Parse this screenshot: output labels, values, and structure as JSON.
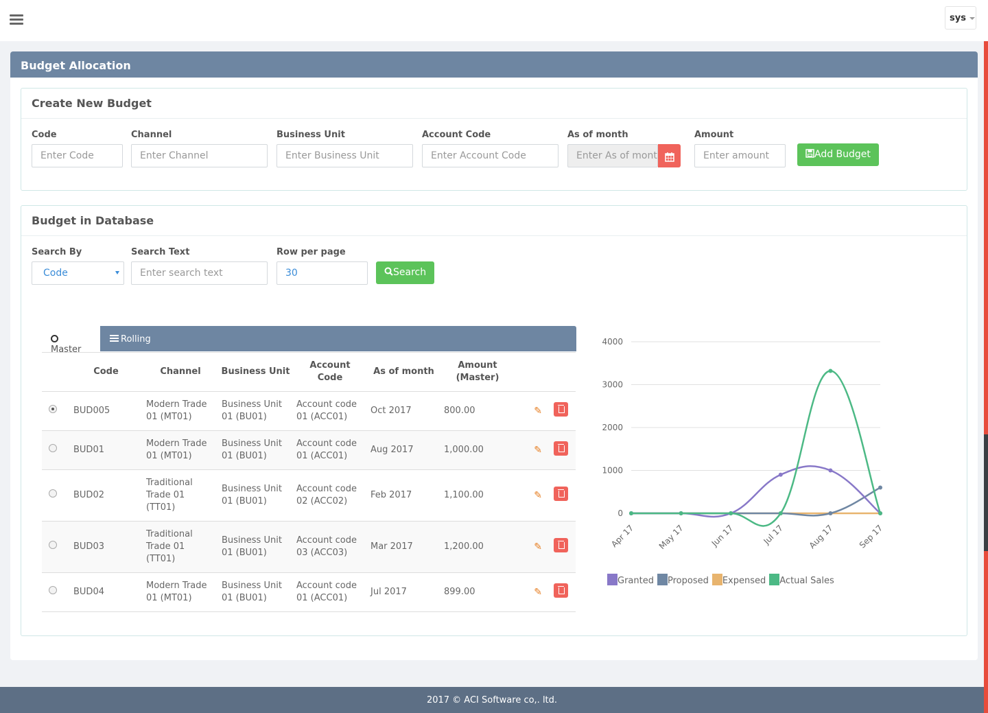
{
  "user": {
    "name": "sys"
  },
  "panel": {
    "title": "Budget Allocation"
  },
  "create": {
    "title": "Create New Budget",
    "fields": [
      {
        "label": "Code",
        "placeholder": "Enter Code"
      },
      {
        "label": "Channel",
        "placeholder": "Enter Channel"
      },
      {
        "label": "Business Unit",
        "placeholder": "Enter Business Unit"
      },
      {
        "label": "Account Code",
        "placeholder": "Enter Account Code"
      },
      {
        "label": "As of month",
        "placeholder": "Enter As of mont"
      },
      {
        "label": "Amount",
        "placeholder": "Enter amount"
      }
    ],
    "add_label": "Add Budget"
  },
  "database": {
    "title": "Budget in Database",
    "search_by_label": "Search By",
    "search_by_value": "Code",
    "search_text_label": "Search Text",
    "search_text_placeholder": "Enter search text",
    "rows_label": "Row per page",
    "rows_value": "30",
    "search_label": "Search"
  },
  "tabs": {
    "master": "Master",
    "rolling": "Rolling"
  },
  "table": {
    "headers": [
      "Code",
      "Channel",
      "Business Unit",
      "Account Code",
      "As of month",
      "Amount (Master)"
    ],
    "rows": [
      {
        "code": "BUD005",
        "channel": "Modern Trade 01 (MT01)",
        "unit": "Business Unit 01 (BU01)",
        "account": "Account code 01 (ACC01)",
        "month": "Oct 2017",
        "amount": "800.00",
        "selected": true
      },
      {
        "code": "BUD01",
        "channel": "Modern Trade 01 (MT01)",
        "unit": "Business Unit 01 (BU01)",
        "account": "Account code 01 (ACC01)",
        "month": "Aug 2017",
        "amount": "1,000.00",
        "selected": false
      },
      {
        "code": "BUD02",
        "channel": "Traditional Trade 01 (TT01)",
        "unit": "Business Unit 01 (BU01)",
        "account": "Account code 02 (ACC02)",
        "month": "Feb 2017",
        "amount": "1,100.00",
        "selected": false
      },
      {
        "code": "BUD03",
        "channel": "Traditional Trade 01 (TT01)",
        "unit": "Business Unit 01 (BU01)",
        "account": "Account code 03 (ACC03)",
        "month": "Mar 2017",
        "amount": "1,200.00",
        "selected": false
      },
      {
        "code": "BUD04",
        "channel": "Modern Trade 01 (MT01)",
        "unit": "Business Unit 01 (BU01)",
        "account": "Account code 01 (ACC01)",
        "month": "Jul 2017",
        "amount": "899.00",
        "selected": false
      }
    ]
  },
  "chart_data": {
    "type": "line",
    "categories": [
      "Apr 17",
      "May 17",
      "Jun 17",
      "Jul 17",
      "Aug 17",
      "Sep 17"
    ],
    "ylim": [
      0,
      4000
    ],
    "yticks": [
      0,
      1000,
      2000,
      3000,
      4000
    ],
    "grid": true,
    "legend_position": "bottom-left",
    "series": [
      {
        "name": "Granted",
        "color": "#8878c8",
        "values": [
          0,
          0,
          0,
          900,
          1000,
          0
        ]
      },
      {
        "name": "Proposed",
        "color": "#6f87a3",
        "values": [
          0,
          0,
          0,
          0,
          0,
          600
        ]
      },
      {
        "name": "Expensed",
        "color": "#e8b46e",
        "values": [
          0,
          0,
          0,
          0,
          0,
          0
        ]
      },
      {
        "name": "Actual Sales",
        "color": "#4cb985",
        "values": [
          0,
          0,
          0,
          0,
          3320,
          0
        ]
      }
    ]
  },
  "footer": {
    "text": "2017 © ACI Software co,. ltd."
  }
}
